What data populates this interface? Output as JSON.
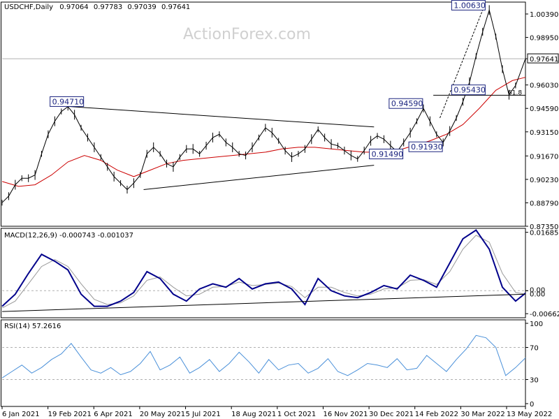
{
  "chart_data": {
    "type": "line",
    "header": {
      "symbol": "USDCHF,Daily",
      "open": "0.97064",
      "high": "0.97783",
      "low": "0.97039",
      "close": "0.97641",
      "watermark": "ActionForex.com"
    },
    "price_axis": {
      "ticks": [
        "1.00390",
        "0.98950",
        "0.97641",
        "0.96030",
        "0.94590",
        "0.93150",
        "0.91670",
        "0.90230",
        "0.88790",
        "0.87350"
      ],
      "ylim": [
        0.8735,
        1.0112
      ]
    },
    "x_tick_labels": [
      "6 Jan 2021",
      "19 Feb 2021",
      "6 Apr 2021",
      "20 May 2021",
      "5 Jul 2021",
      "18 Aug 2021",
      "1 Oct 2021",
      "16 Nov 2021",
      "30 Dec 2021",
      "14 Feb 2022",
      "30 Mar 2022",
      "13 May 2022"
    ],
    "series": [
      {
        "role": "price",
        "color": "#000000",
        "x": [
          0,
          4,
          8,
          12,
          16,
          20,
          24,
          28,
          32,
          36,
          40,
          44,
          48,
          52,
          56,
          60,
          64,
          68,
          72,
          76,
          80,
          84,
          88,
          92,
          96,
          100,
          104,
          108,
          112,
          116,
          120,
          124,
          128,
          132,
          136,
          140,
          144,
          148,
          152,
          156,
          160,
          164,
          168,
          172,
          176,
          180,
          184,
          188,
          192,
          196,
          200,
          204,
          208,
          212,
          216,
          220,
          224,
          228,
          232,
          236,
          240,
          244,
          248,
          252,
          256,
          260,
          264,
          268,
          272,
          276,
          280,
          284,
          288,
          292,
          296,
          300,
          304,
          308,
          312,
          318
        ],
        "values": [
          0.888,
          0.892,
          0.899,
          0.903,
          0.903,
          0.905,
          0.918,
          0.93,
          0.938,
          0.944,
          0.947,
          0.942,
          0.934,
          0.928,
          0.922,
          0.916,
          0.91,
          0.904,
          0.9,
          0.896,
          0.9,
          0.905,
          0.918,
          0.922,
          0.918,
          0.912,
          0.91,
          0.916,
          0.921,
          0.921,
          0.918,
          0.923,
          0.928,
          0.93,
          0.925,
          0.922,
          0.918,
          0.917,
          0.922,
          0.928,
          0.934,
          0.931,
          0.926,
          0.92,
          0.916,
          0.918,
          0.921,
          0.927,
          0.933,
          0.928,
          0.924,
          0.923,
          0.92,
          0.917,
          0.9149,
          0.92,
          0.926,
          0.929,
          0.927,
          0.923,
          0.9193,
          0.925,
          0.931,
          0.938,
          0.9459,
          0.938,
          0.93,
          0.925,
          0.932,
          0.94,
          0.95,
          0.962,
          0.978,
          0.993,
          1.0063,
          0.99,
          0.97,
          0.9543,
          0.96,
          0.9764
        ]
      },
      {
        "role": "moving-average",
        "color": "#cc0000",
        "x": [
          0,
          10,
          20,
          30,
          40,
          50,
          60,
          70,
          80,
          90,
          100,
          110,
          120,
          130,
          140,
          150,
          160,
          170,
          180,
          190,
          200,
          210,
          220,
          230,
          240,
          250,
          260,
          270,
          280,
          290,
          300,
          310,
          318
        ],
        "values": [
          0.901,
          0.898,
          0.899,
          0.905,
          0.913,
          0.917,
          0.914,
          0.908,
          0.904,
          0.908,
          0.912,
          0.914,
          0.915,
          0.916,
          0.917,
          0.918,
          0.919,
          0.921,
          0.922,
          0.922,
          0.921,
          0.92,
          0.919,
          0.919,
          0.92,
          0.923,
          0.926,
          0.93,
          0.936,
          0.946,
          0.957,
          0.963,
          0.965
        ]
      }
    ],
    "trendlines": [
      {
        "from": [
          40,
          0.9471
        ],
        "to": [
          226,
          0.9345
        ],
        "color": "#000000"
      },
      {
        "from": [
          86,
          0.896
        ],
        "to": [
          226,
          0.911
        ],
        "color": "#000000"
      },
      {
        "from": [
          262,
          0.954
        ],
        "to": [
          318,
          0.954
        ],
        "color": "#000000"
      },
      {
        "from": [
          266,
          0.94
        ],
        "to": [
          292,
          1.0063
        ],
        "color": "#000000",
        "dashed": true
      }
    ],
    "price_annotations": [
      {
        "text": "0.94710",
        "x": 30,
        "y": 0.9471
      },
      {
        "text": "1.00630",
        "x": 274,
        "y": 1.0063
      },
      {
        "text": "0.94590",
        "x": 236,
        "y": 0.9459
      },
      {
        "text": "0.95430",
        "x": 274,
        "y": 0.9543
      },
      {
        "text": "0.91930",
        "x": 248,
        "y": 0.9193
      },
      {
        "text": "0.91490",
        "x": 224,
        "y": 0.9149
      }
    ],
    "fib_label": {
      "text": "61.8",
      "x": 304,
      "y": 0.954
    },
    "macd": {
      "title": "MACD(12,26,9) -0.000743 -0.001037",
      "ticks": [
        "0.016856",
        "0.00",
        "0.00",
        "-0.006629"
      ],
      "ylim": [
        -0.0078,
        0.018
      ],
      "macd_color": "#00008b",
      "signal_color": "#999999",
      "x": [
        0,
        8,
        16,
        24,
        32,
        40,
        48,
        56,
        64,
        72,
        80,
        88,
        96,
        104,
        112,
        120,
        128,
        136,
        144,
        152,
        160,
        168,
        176,
        184,
        192,
        200,
        208,
        216,
        224,
        232,
        240,
        248,
        256,
        264,
        272,
        280,
        288,
        296,
        304,
        312,
        318
      ],
      "macd_values": [
        -0.0045,
        -0.001,
        0.005,
        0.0105,
        0.0085,
        0.006,
        -0.001,
        -0.0045,
        -0.0045,
        -0.003,
        -0.0005,
        0.0055,
        0.0035,
        -0.001,
        -0.003,
        0.0005,
        0.002,
        0.001,
        0.0035,
        0.0005,
        0.002,
        0.0025,
        0.0005,
        -0.004,
        0.0035,
        0.0,
        -0.0015,
        -0.002,
        -0.0005,
        0.0015,
        0.0005,
        0.0045,
        0.003,
        0.001,
        0.008,
        0.015,
        0.0175,
        0.012,
        0.001,
        -0.003,
        -0.0007
      ],
      "signal_values": [
        -0.005,
        -0.003,
        0.002,
        0.007,
        0.009,
        0.007,
        0.002,
        -0.0025,
        -0.004,
        -0.0035,
        -0.0015,
        0.003,
        0.004,
        0.001,
        -0.0015,
        -0.001,
        0.001,
        0.0012,
        0.0025,
        0.0015,
        0.0018,
        0.0022,
        0.0012,
        -0.002,
        0.001,
        0.001,
        -0.0005,
        -0.0015,
        -0.001,
        0.0005,
        0.0008,
        0.003,
        0.0032,
        0.0018,
        0.0055,
        0.012,
        0.016,
        0.014,
        0.005,
        -0.0005,
        -0.001
      ],
      "trendline": {
        "from": [
          0,
          -0.006
        ],
        "to": [
          318,
          -0.001
        ]
      }
    },
    "rsi": {
      "title": "RSI(14) 57.2616",
      "ticks": [
        "100",
        "70",
        "30",
        "0"
      ],
      "ylim": [
        0,
        100
      ],
      "color": "#4a90d9",
      "levels": [
        70,
        30
      ],
      "x": [
        0,
        6,
        12,
        18,
        24,
        30,
        36,
        42,
        48,
        54,
        60,
        66,
        72,
        78,
        84,
        90,
        96,
        102,
        108,
        114,
        120,
        126,
        132,
        138,
        144,
        150,
        156,
        162,
        168,
        174,
        180,
        186,
        192,
        198,
        204,
        210,
        216,
        222,
        228,
        234,
        240,
        246,
        252,
        258,
        264,
        270,
        276,
        282,
        288,
        294,
        300,
        306,
        312,
        318
      ],
      "values": [
        32,
        40,
        48,
        38,
        45,
        55,
        62,
        75,
        58,
        42,
        38,
        45,
        36,
        40,
        50,
        65,
        42,
        48,
        58,
        38,
        45,
        55,
        40,
        50,
        64,
        52,
        38,
        55,
        42,
        48,
        50,
        38,
        44,
        56,
        40,
        35,
        42,
        50,
        48,
        45,
        56,
        42,
        44,
        60,
        50,
        40,
        55,
        68,
        85,
        82,
        70,
        35,
        45,
        57
      ]
    }
  }
}
